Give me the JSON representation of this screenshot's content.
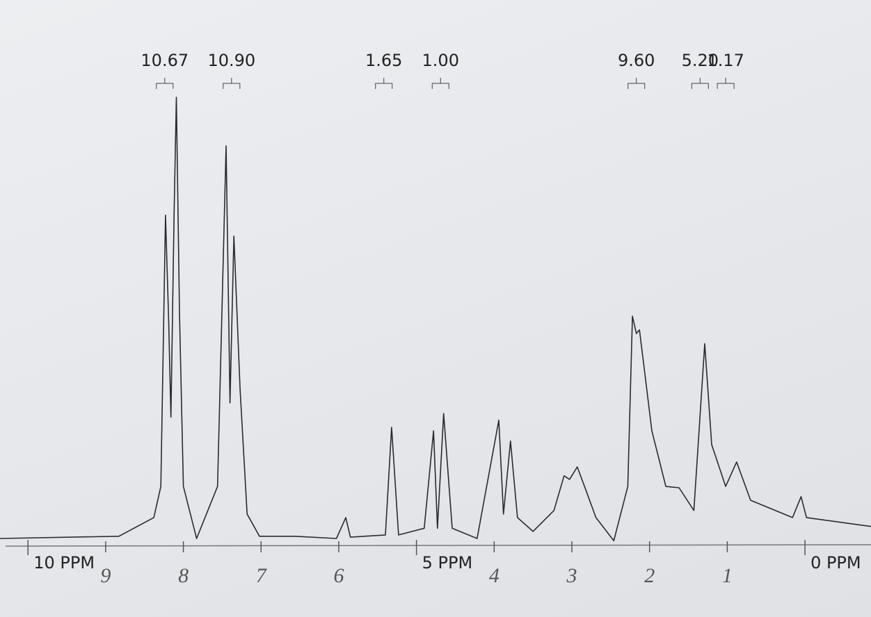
{
  "chart_data": {
    "type": "line",
    "x": [
      10.36,
      8.83,
      8.38,
      8.29,
      8.23,
      8.19,
      8.16,
      8.12,
      8.09,
      8.05,
      8.0,
      7.83,
      7.56,
      7.45,
      7.4,
      7.35,
      7.27,
      7.18,
      7.02,
      6.57,
      6.03,
      5.91,
      5.85,
      5.4,
      5.32,
      5.23,
      4.9,
      4.78,
      4.73,
      4.65,
      4.54,
      4.22,
      3.94,
      3.88,
      3.79,
      3.7,
      3.5,
      3.23,
      3.1,
      3.03,
      2.93,
      2.82,
      2.69,
      2.46,
      2.28,
      2.22,
      2.17,
      2.13,
      2.08,
      1.97,
      1.79,
      1.62,
      1.43,
      1.29,
      1.2,
      1.02,
      0.88,
      0.7,
      0.16,
      0.05,
      -0.02,
      -0.85
    ],
    "series": [
      {
        "color": "#2a2a2e",
        "values": [
          0,
          0.5,
          4.7,
          11.7,
          72.7,
          49.2,
          27.3,
          72.7,
          99.2,
          50.8,
          11.7,
          0,
          11.7,
          88.3,
          30.5,
          68.0,
          33.6,
          5.5,
          0.5,
          0.5,
          0,
          4.7,
          0.3,
          0.8,
          25.0,
          0.8,
          2.3,
          24.2,
          2.3,
          28.1,
          2.3,
          0,
          26.6,
          5.5,
          21.9,
          4.7,
          1.6,
          6.3,
          14.1,
          13.3,
          16.1,
          10.9,
          4.7,
          -0.5,
          11.7,
          50.0,
          46.1,
          46.9,
          39.8,
          24.2,
          11.7,
          11.4,
          6.3,
          43.8,
          21.1,
          11.7,
          17.2,
          8.6,
          4.7,
          9.4,
          4.7,
          2.7
        ]
      }
    ],
    "xlim": [
      10.36,
      -0.85
    ],
    "ylim": [
      0,
      100
    ],
    "xticks": [
      {
        "value": 10,
        "label": "10 PPM"
      },
      {
        "value": 5,
        "label": "5 PPM"
      },
      {
        "value": 0,
        "label": "0 PPM"
      }
    ],
    "minor_xticks": [
      9,
      8,
      7,
      6,
      4,
      3,
      2,
      1
    ],
    "integrals": [
      {
        "label": "10.67",
        "x": 8.24
      },
      {
        "label": "10.90",
        "x": 7.38
      },
      {
        "label": "1.65",
        "x": 5.42
      },
      {
        "label": "1.00",
        "x": 4.69
      },
      {
        "label": "9.60",
        "x": 2.17
      },
      {
        "label": "5.20",
        "x": 1.35
      },
      {
        "label": "1.17",
        "x": 1.02
      }
    ],
    "handwritten_labels": [
      {
        "text": "9",
        "x": 9
      },
      {
        "text": "8",
        "x": 8
      },
      {
        "text": "7",
        "x": 7
      },
      {
        "text": "6",
        "x": 6
      },
      {
        "text": "4",
        "x": 4
      },
      {
        "text": "3",
        "x": 3
      },
      {
        "text": "2",
        "x": 2
      },
      {
        "text": "1",
        "x": 1
      }
    ]
  }
}
